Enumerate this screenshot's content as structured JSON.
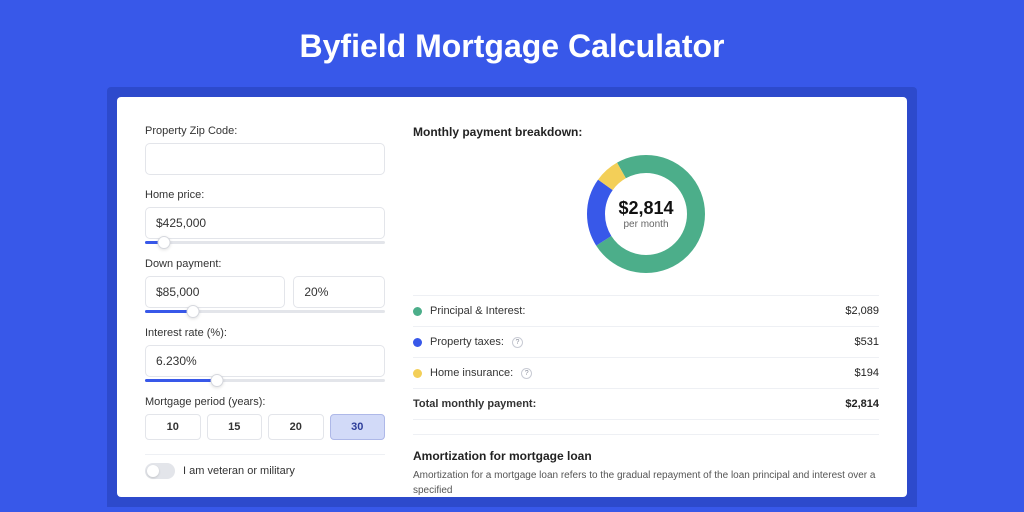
{
  "page": {
    "title": "Byfield Mortgage Calculator",
    "background_color": "#3858e9",
    "outer_card_color": "#2d4acc",
    "inner_card_color": "#ffffff"
  },
  "form": {
    "zip": {
      "label": "Property Zip Code:",
      "value": ""
    },
    "home_price": {
      "label": "Home price:",
      "value": "$425,000",
      "slider_percent": 8
    },
    "down_payment": {
      "label": "Down payment:",
      "amount": "$85,000",
      "percent": "20%",
      "slider_percent": 20
    },
    "interest_rate": {
      "label": "Interest rate (%):",
      "value": "6.230%",
      "slider_percent": 30
    },
    "mortgage_period": {
      "label": "Mortgage period (years):",
      "options": [
        "10",
        "15",
        "20",
        "30"
      ],
      "selected_index": 3
    },
    "veteran_toggle": {
      "label": "I am veteran or military",
      "on": false
    }
  },
  "breakdown": {
    "title": "Monthly payment breakdown:",
    "donut": {
      "center_amount": "$2,814",
      "center_sub": "per month",
      "slices": [
        {
          "key": "principal_interest",
          "value": 2089,
          "color": "#4cae8a"
        },
        {
          "key": "property_taxes",
          "value": 531,
          "color": "#3858e9"
        },
        {
          "key": "home_insurance",
          "value": 194,
          "color": "#f3cf58"
        }
      ],
      "stroke_width": 18,
      "radius": 50,
      "start_angle_deg": -30
    },
    "items": [
      {
        "label": "Principal & Interest:",
        "amount": "$2,089",
        "color": "#4cae8a",
        "has_help": false
      },
      {
        "label": "Property taxes:",
        "amount": "$531",
        "color": "#3858e9",
        "has_help": true
      },
      {
        "label": "Home insurance:",
        "amount": "$194",
        "color": "#f3cf58",
        "has_help": true
      }
    ],
    "total": {
      "label": "Total monthly payment:",
      "amount": "$2,814"
    }
  },
  "amortization": {
    "title": "Amortization for mortgage loan",
    "text": "Amortization for a mortgage loan refers to the gradual repayment of the loan principal and interest over a specified"
  }
}
